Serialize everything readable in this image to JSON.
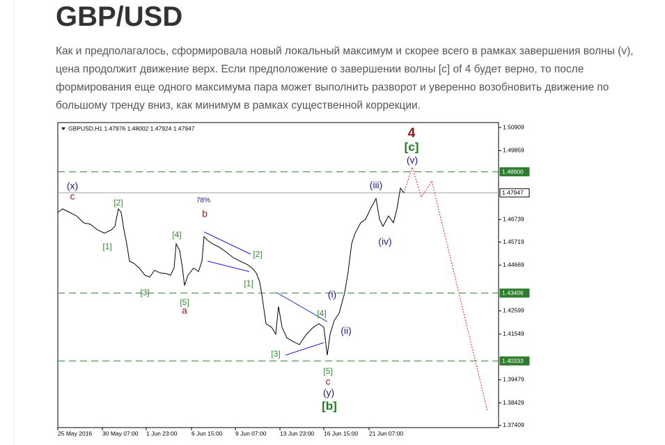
{
  "header": {
    "title": "GBP/USD"
  },
  "paragraph_lines": [
    "Как и предполагалось, сформировала новый локальный максимум и скорее всего в рамках завершения волны (v),",
    "цена продолжит движение верх. Если предположение о завершении волны [c] of 4 будет верно, то после",
    "формирования еще одного максимума пара может выполнить разворот и уверенно возобновить движение по",
    "большому тренду вниз, как минимум в рамках существенной коррекции."
  ],
  "chart_data": {
    "type": "line",
    "title": "GBPUSD,H1  1.47976 1.48002 1.47924 1.47947",
    "xlim": [
      0,
      633
    ],
    "ylim": [
      1.37314,
      1.5113
    ],
    "xticks": [
      {
        "value": 0,
        "label": "25 May 2016"
      },
      {
        "value": 64,
        "label": "30 May 07:00"
      },
      {
        "value": 127,
        "label": "1 Jun 23:00"
      },
      {
        "value": 192,
        "label": "6 Jun 15:00"
      },
      {
        "value": 255,
        "label": "9 Jun 07:00"
      },
      {
        "value": 319,
        "label": "13 Jun 23:00"
      },
      {
        "value": 382,
        "label": "16 Jun 15:00"
      },
      {
        "value": 447,
        "label": "21 Jun 07:00"
      }
    ],
    "yticks": [
      1.50909,
      1.49859,
      1.46739,
      1.45719,
      1.44669,
      1.42599,
      1.41549,
      1.39479,
      1.38429,
      1.37409
    ],
    "series": [
      {
        "color": "#000000",
        "dashed": false,
        "x": [
          0,
          7,
          17,
          27,
          37,
          47,
          57,
          67,
          77,
          82,
          87,
          91,
          95,
          99,
          103,
          109,
          117,
          125,
          132,
          139,
          147,
          155,
          162,
          167,
          170,
          175,
          179,
          182,
          187,
          195,
          202,
          207,
          210,
          215,
          222,
          232,
          242,
          252,
          262,
          272,
          279,
          285,
          290,
          294,
          299,
          307,
          313,
          317,
          322,
          329,
          337,
          347,
          357,
          367,
          375,
          382,
          387,
          391,
          397,
          404,
          412,
          417,
          422,
          427,
          435,
          442,
          449,
          457,
          462,
          467,
          475,
          482,
          487,
          492,
          497
        ],
        "values": [
          1.4706,
          1.4722,
          1.4706,
          1.469,
          1.4659,
          1.4652,
          1.4627,
          1.4612,
          1.4627,
          1.4643,
          1.4722,
          1.4706,
          1.4627,
          1.4564,
          1.4485,
          1.4476,
          1.4454,
          1.4422,
          1.4413,
          1.4444,
          1.4432,
          1.4429,
          1.4422,
          1.4454,
          1.4564,
          1.4533,
          1.4454,
          1.4375,
          1.4422,
          1.4454,
          1.4438,
          1.4485,
          1.4596,
          1.458,
          1.4564,
          1.4548,
          1.4526,
          1.4501,
          1.4485,
          1.447,
          1.4454,
          1.4432,
          1.4391,
          1.4312,
          1.4202,
          1.4186,
          1.4154,
          1.428,
          1.4186,
          1.4138,
          1.4123,
          1.4107,
          1.4154,
          1.4186,
          1.4202,
          1.4186,
          1.4059,
          1.4154,
          1.4217,
          1.4249,
          1.4343,
          1.4438,
          1.4564,
          1.4612,
          1.4659,
          1.4675,
          1.4722,
          1.4769,
          1.4675,
          1.4643,
          1.469,
          1.4659,
          1.4722,
          1.4816,
          1.4795
        ]
      },
      {
        "color": "#e02020",
        "dashed": true,
        "x": [
          497,
          509,
          522,
          537,
          617
        ],
        "values": [
          1.4795,
          1.4911,
          1.4775,
          1.4848,
          1.3807
        ]
      }
    ],
    "levels": [
      {
        "value": 1.489,
        "label": "1.48900",
        "color": "#2e7d2e",
        "style": "dashed"
      },
      {
        "value": 1.43406,
        "label": "1.43406",
        "color": "#2e7d2e",
        "style": "dashed"
      },
      {
        "value": 1.40333,
        "label": "1.40333",
        "color": "#2e7d2e",
        "style": "dashed"
      },
      {
        "value": 1.47947,
        "label": "1.47947",
        "color": "#a0a0a0",
        "style": "solid"
      }
    ],
    "annotations": [
      {
        "text": "(x)",
        "color": "#1a1a8c"
      },
      {
        "text": "c",
        "color": "#8b1a1a"
      },
      {
        "text": "[2]",
        "color": "#2e8b2e"
      },
      {
        "text": "[1]",
        "color": "#2e8b2e"
      },
      {
        "text": "[3]",
        "color": "#2e8b2e"
      },
      {
        "text": "[4]",
        "color": "#2e8b2e"
      },
      {
        "text": "[5]",
        "color": "#2e8b2e"
      },
      {
        "text": "a",
        "color": "#8b1a1a"
      },
      {
        "text": "78%",
        "color": "#1a1a8c"
      },
      {
        "text": "b",
        "color": "#8b1a1a"
      },
      {
        "text": "[2]",
        "color": "#2e8b2e"
      },
      {
        "text": "[1]",
        "color": "#2e8b2e"
      },
      {
        "text": "[3]",
        "color": "#2e8b2e"
      },
      {
        "text": "[4]",
        "color": "#2e8b2e"
      },
      {
        "text": "(i)",
        "color": "#1a1a8c"
      },
      {
        "text": "(ii)",
        "color": "#1a1a8c"
      },
      {
        "text": "[5]",
        "color": "#2e8b2e"
      },
      {
        "text": "c",
        "color": "#8b1a1a"
      },
      {
        "text": "(y)",
        "color": "#1a1a8c"
      },
      {
        "text": "[b]",
        "color": "#1a7a1a"
      },
      {
        "text": "(iii)",
        "color": "#1a1a8c"
      },
      {
        "text": "(iv)",
        "color": "#1a1a8c"
      },
      {
        "text": "(v)",
        "color": "#1a1a8c"
      },
      {
        "text": "[c]",
        "color": "#1a7a1a"
      },
      {
        "text": "4",
        "color": "#8b1a1a"
      }
    ]
  }
}
